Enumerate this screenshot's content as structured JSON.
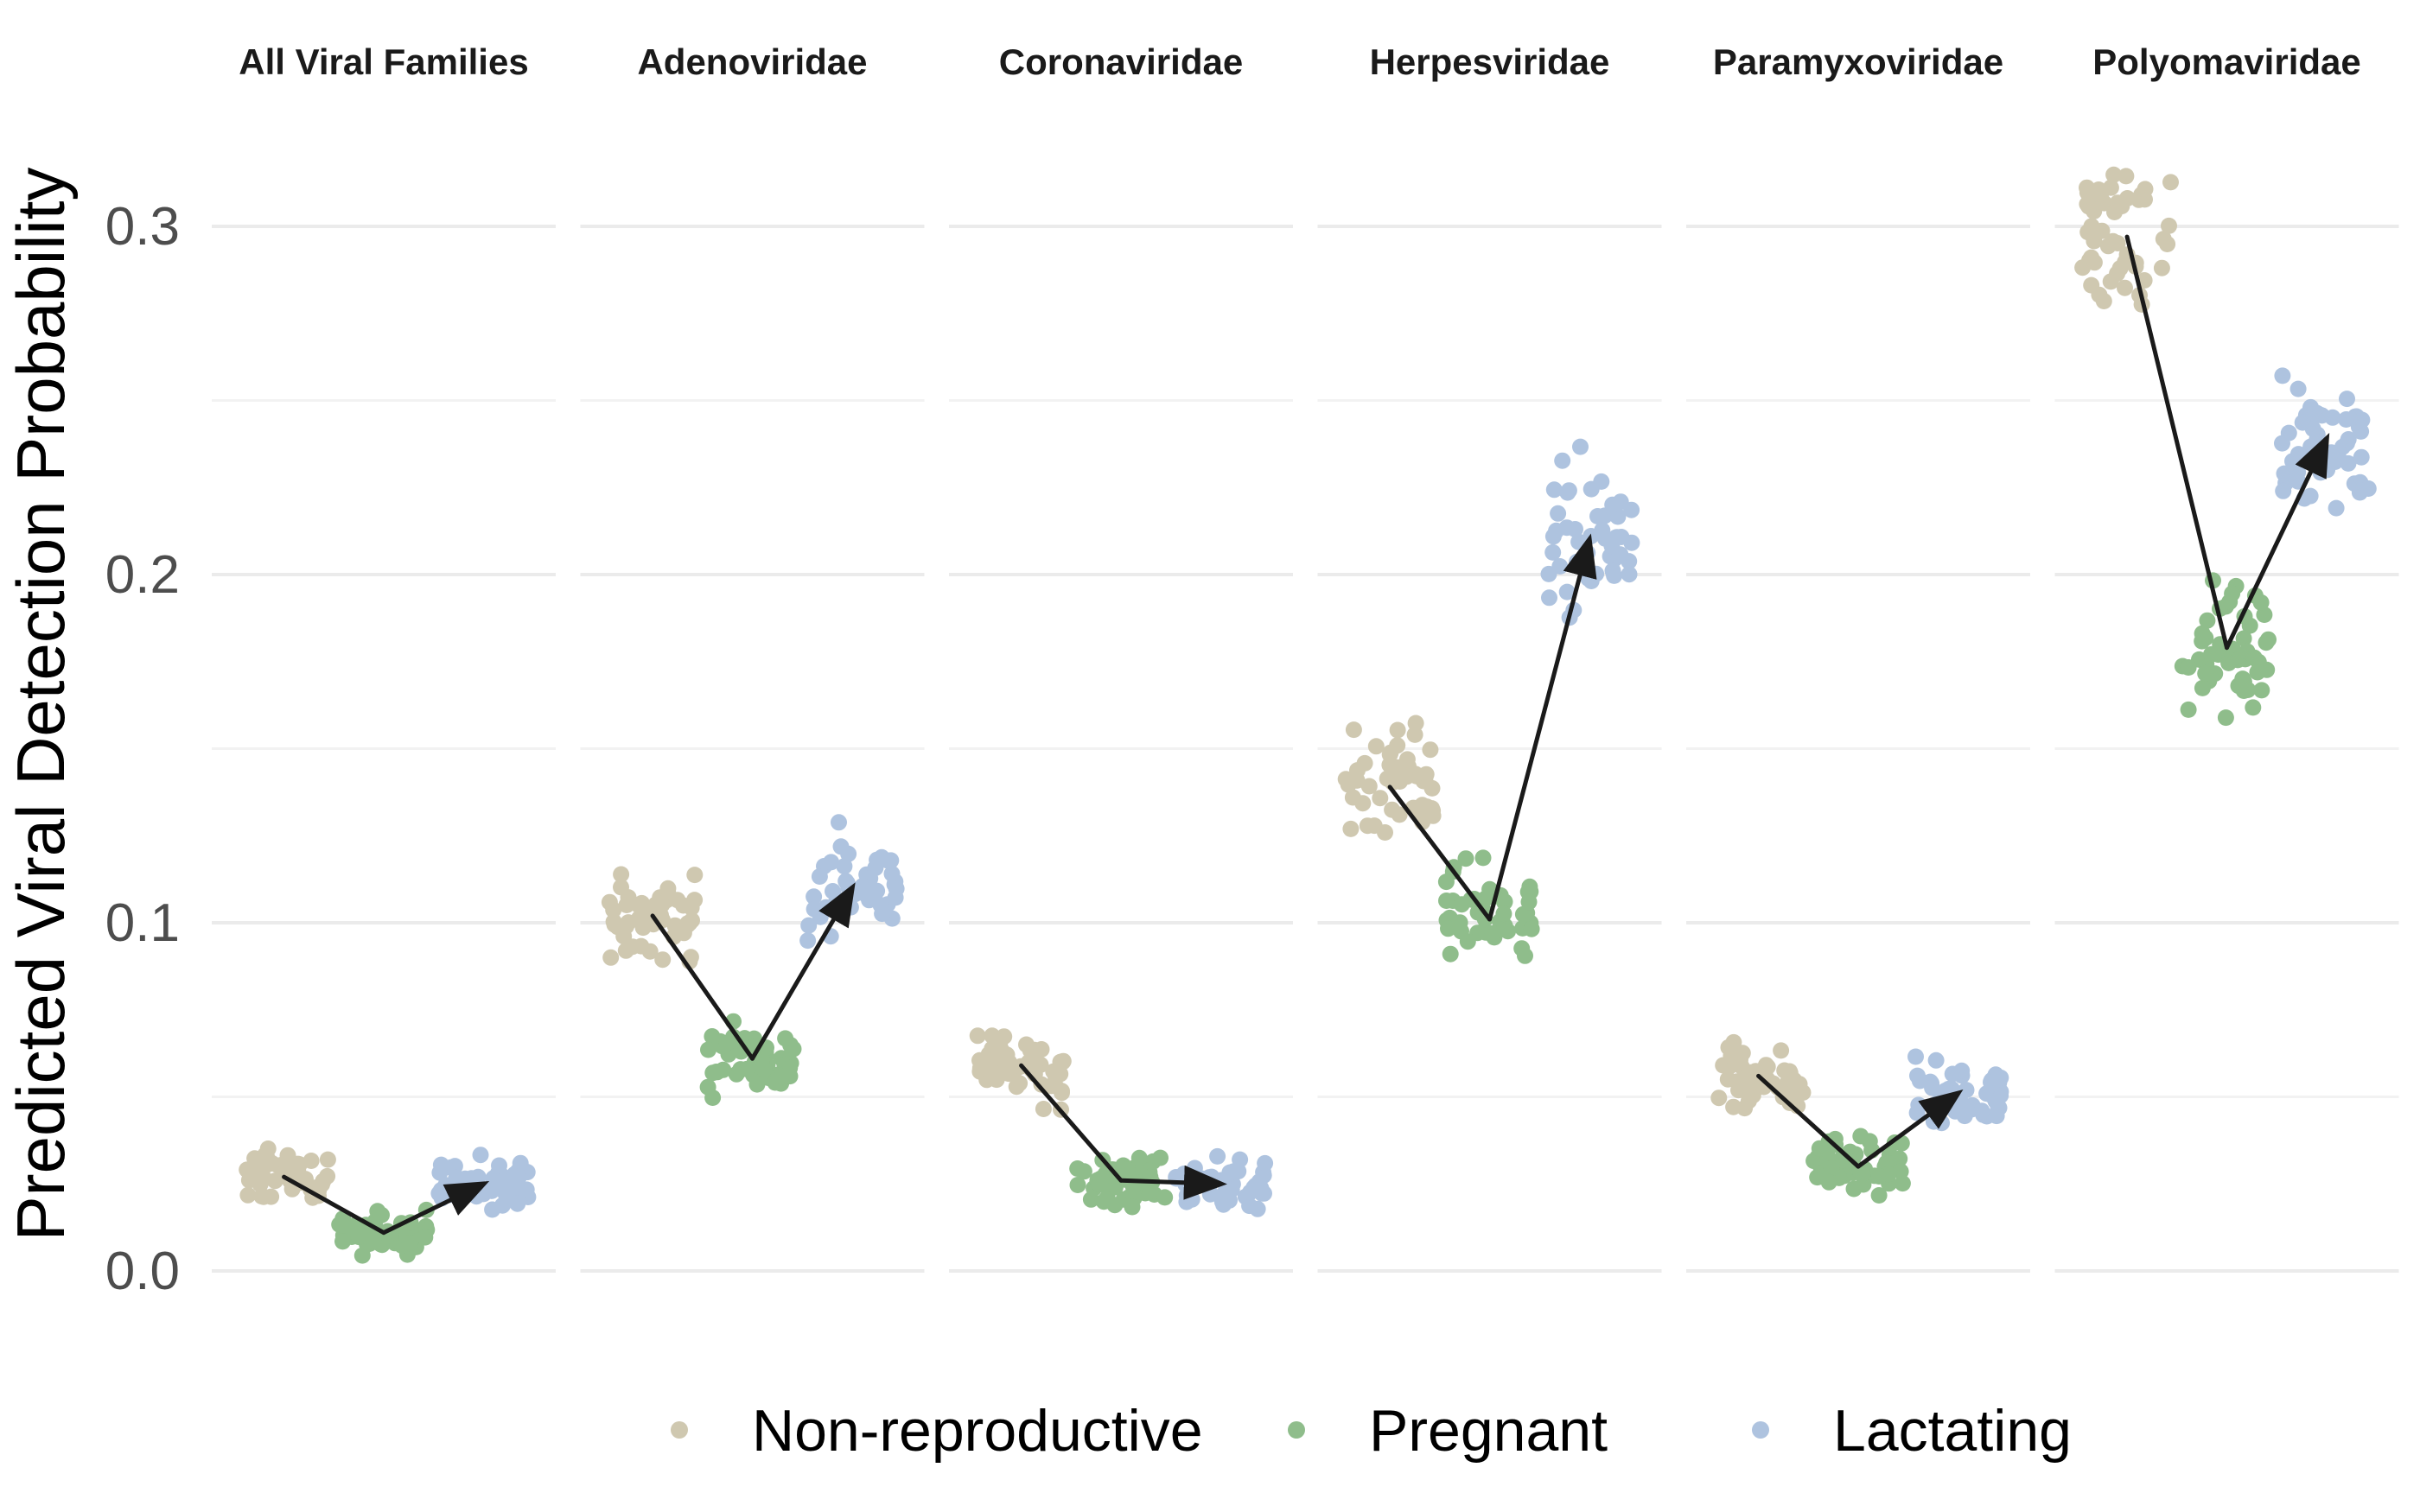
{
  "chart_data": {
    "type": "scatter",
    "ylabel": "Predicted Viral Detection Probability",
    "xlabel": "",
    "ylim": [
      -0.03,
      0.345
    ],
    "y_ticks": [
      0.0,
      0.1,
      0.2,
      0.3
    ],
    "y_tick_labels": [
      "0.0",
      "0.1",
      "0.2",
      "0.3"
    ],
    "grid": true,
    "legend_position": "bottom",
    "categories": [
      "Non-reproductive",
      "Pregnant",
      "Lactating"
    ],
    "series": [
      {
        "name": "Non-reproductive",
        "color": "#cfc8b0"
      },
      {
        "name": "Pregnant",
        "color": "#8fbd8b"
      },
      {
        "name": "Lactating",
        "color": "#aec3df"
      }
    ],
    "facets": [
      {
        "title": "All Viral Families",
        "means": [
          0.027,
          0.011,
          0.025
        ],
        "spread": [
          0.005,
          0.004,
          0.005
        ],
        "points_per_group": 50
      },
      {
        "title": "Adenoviridae",
        "means": [
          0.102,
          0.061,
          0.11
        ],
        "spread": [
          0.008,
          0.007,
          0.01
        ],
        "points_per_group": 50
      },
      {
        "title": "Coronaviridae",
        "means": [
          0.059,
          0.026,
          0.025
        ],
        "spread": [
          0.007,
          0.005,
          0.005
        ],
        "points_per_group": 50
      },
      {
        "title": "Herpesviridae",
        "means": [
          0.139,
          0.101,
          0.21
        ],
        "spread": [
          0.011,
          0.01,
          0.015
        ],
        "points_per_group": 50
      },
      {
        "title": "Paramyxoviridae",
        "means": [
          0.056,
          0.03,
          0.051
        ],
        "spread": [
          0.007,
          0.005,
          0.006
        ],
        "points_per_group": 50
      },
      {
        "title": "Polyomaviridae",
        "means": [
          0.297,
          0.179,
          0.239
        ],
        "spread": [
          0.014,
          0.012,
          0.014
        ],
        "points_per_group": 50
      }
    ],
    "annotations": "Arrows connect group means: Non-reproductive to Pregnant to Lactating"
  },
  "legend": {
    "items": [
      {
        "label": "Non-reproductive",
        "color": "#cfc8b0"
      },
      {
        "label": "Pregnant",
        "color": "#8fbd8b"
      },
      {
        "label": "Lactating",
        "color": "#aec3df"
      }
    ]
  }
}
